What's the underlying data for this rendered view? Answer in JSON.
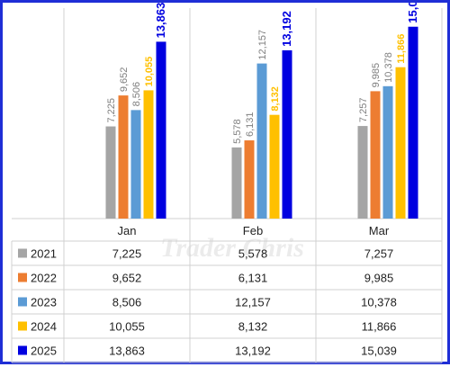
{
  "watermark": "Trader Chris",
  "chart_data": {
    "type": "bar",
    "categories": [
      "Jan",
      "Feb",
      "Mar"
    ],
    "series": [
      {
        "name": "2021",
        "color": "#a5a5a5",
        "label_color": "#7f7f7f",
        "values": [
          7225,
          5578,
          7257
        ],
        "labels": [
          "7,225",
          "5,578",
          "7,257"
        ]
      },
      {
        "name": "2022",
        "color": "#ed7d31",
        "label_color": "#7f7f7f",
        "values": [
          9652,
          6131,
          9985
        ],
        "labels": [
          "9,652",
          "6,131",
          "9,985"
        ]
      },
      {
        "name": "2023",
        "color": "#5b9bd5",
        "label_color": "#7f7f7f",
        "values": [
          8506,
          12157,
          10378
        ],
        "labels": [
          "8,506",
          "12,157",
          "10,378"
        ]
      },
      {
        "name": "2024",
        "color": "#ffc000",
        "label_color": "#ffc000",
        "values": [
          10055,
          8132,
          11866
        ],
        "labels": [
          "10,055",
          "8,132",
          "11,866"
        ]
      },
      {
        "name": "2025",
        "color": "#0000e0",
        "label_color": "#0000e0",
        "values": [
          13863,
          13192,
          15039
        ],
        "labels": [
          "13,863",
          "13,192",
          "15,039"
        ]
      }
    ],
    "ylim": [
      0,
      16500
    ],
    "legend": "data-table",
    "grid": false
  }
}
